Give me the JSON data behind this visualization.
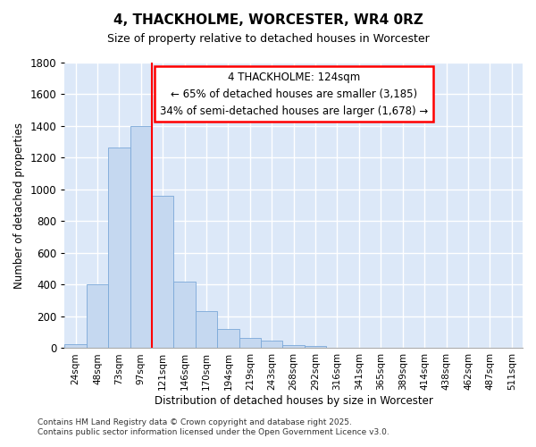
{
  "title": "4, THACKHOLME, WORCESTER, WR4 0RZ",
  "subtitle": "Size of property relative to detached houses in Worcester",
  "xlabel": "Distribution of detached houses by size in Worcester",
  "ylabel": "Number of detached properties",
  "bar_labels": [
    "24sqm",
    "48sqm",
    "73sqm",
    "97sqm",
    "121sqm",
    "146sqm",
    "170sqm",
    "194sqm",
    "219sqm",
    "243sqm",
    "268sqm",
    "292sqm",
    "316sqm",
    "341sqm",
    "365sqm",
    "389sqm",
    "414sqm",
    "438sqm",
    "462sqm",
    "487sqm",
    "511sqm"
  ],
  "bar_values": [
    25,
    400,
    1265,
    1400,
    960,
    420,
    235,
    120,
    65,
    45,
    20,
    15,
    5,
    2,
    2,
    0,
    0,
    0,
    0,
    0,
    0
  ],
  "bar_color": "#c5d8f0",
  "bar_edge_color": "#7aa8d8",
  "bg_color": "#dce8f8",
  "grid_color": "#ffffff",
  "fig_bg_color": "#ffffff",
  "ylim": [
    0,
    1800
  ],
  "yticks": [
    0,
    200,
    400,
    600,
    800,
    1000,
    1200,
    1400,
    1600,
    1800
  ],
  "red_line_x": 4.5,
  "annotation_text": "4 THACKHOLME: 124sqm\n← 65% of detached houses are smaller (3,185)\n34% of semi-detached houses are larger (1,678) →",
  "footer_line1": "Contains HM Land Registry data © Crown copyright and database right 2025.",
  "footer_line2": "Contains public sector information licensed under the Open Government Licence v3.0."
}
